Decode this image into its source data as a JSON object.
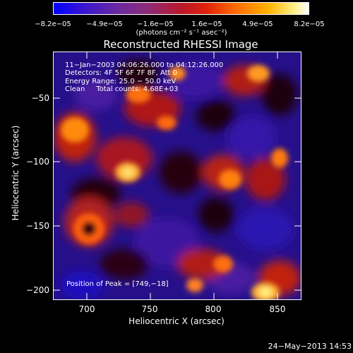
{
  "colorbar": {
    "ticks": [
      "−8.2e−05",
      "−4.9e−05",
      "−1.6e−05",
      "1.6e−05",
      "4.9e−05",
      "8.2e−05"
    ],
    "units": "(photons cm⁻² s⁻¹ asec⁻²)"
  },
  "title": "Reconstructed RHESSI Image",
  "info": {
    "time_range": "11−Jan−2003 04:06:26.000 to 04:12:26.000",
    "detectors": "Detectors: 4F 5F 6F 7F 8F, Att 0",
    "energy": "Energy Range: 25.0 − 50.0 keV",
    "clean": "Clean     Total counts: 4.68E+03",
    "peak": "Position of Peak = [749,−18]"
  },
  "axes": {
    "xlabel": "Heliocentric X (arcsec)",
    "ylabel": "Heliocentric Y (arcsec)",
    "xticks": [
      "700",
      "750",
      "800",
      "850"
    ],
    "yticks": [
      "−50",
      "−100",
      "−150",
      "−200"
    ],
    "xlim": [
      673,
      867
    ],
    "ylim": [
      -212,
      -18
    ]
  },
  "footer": "24−May−2013 14:53"
}
